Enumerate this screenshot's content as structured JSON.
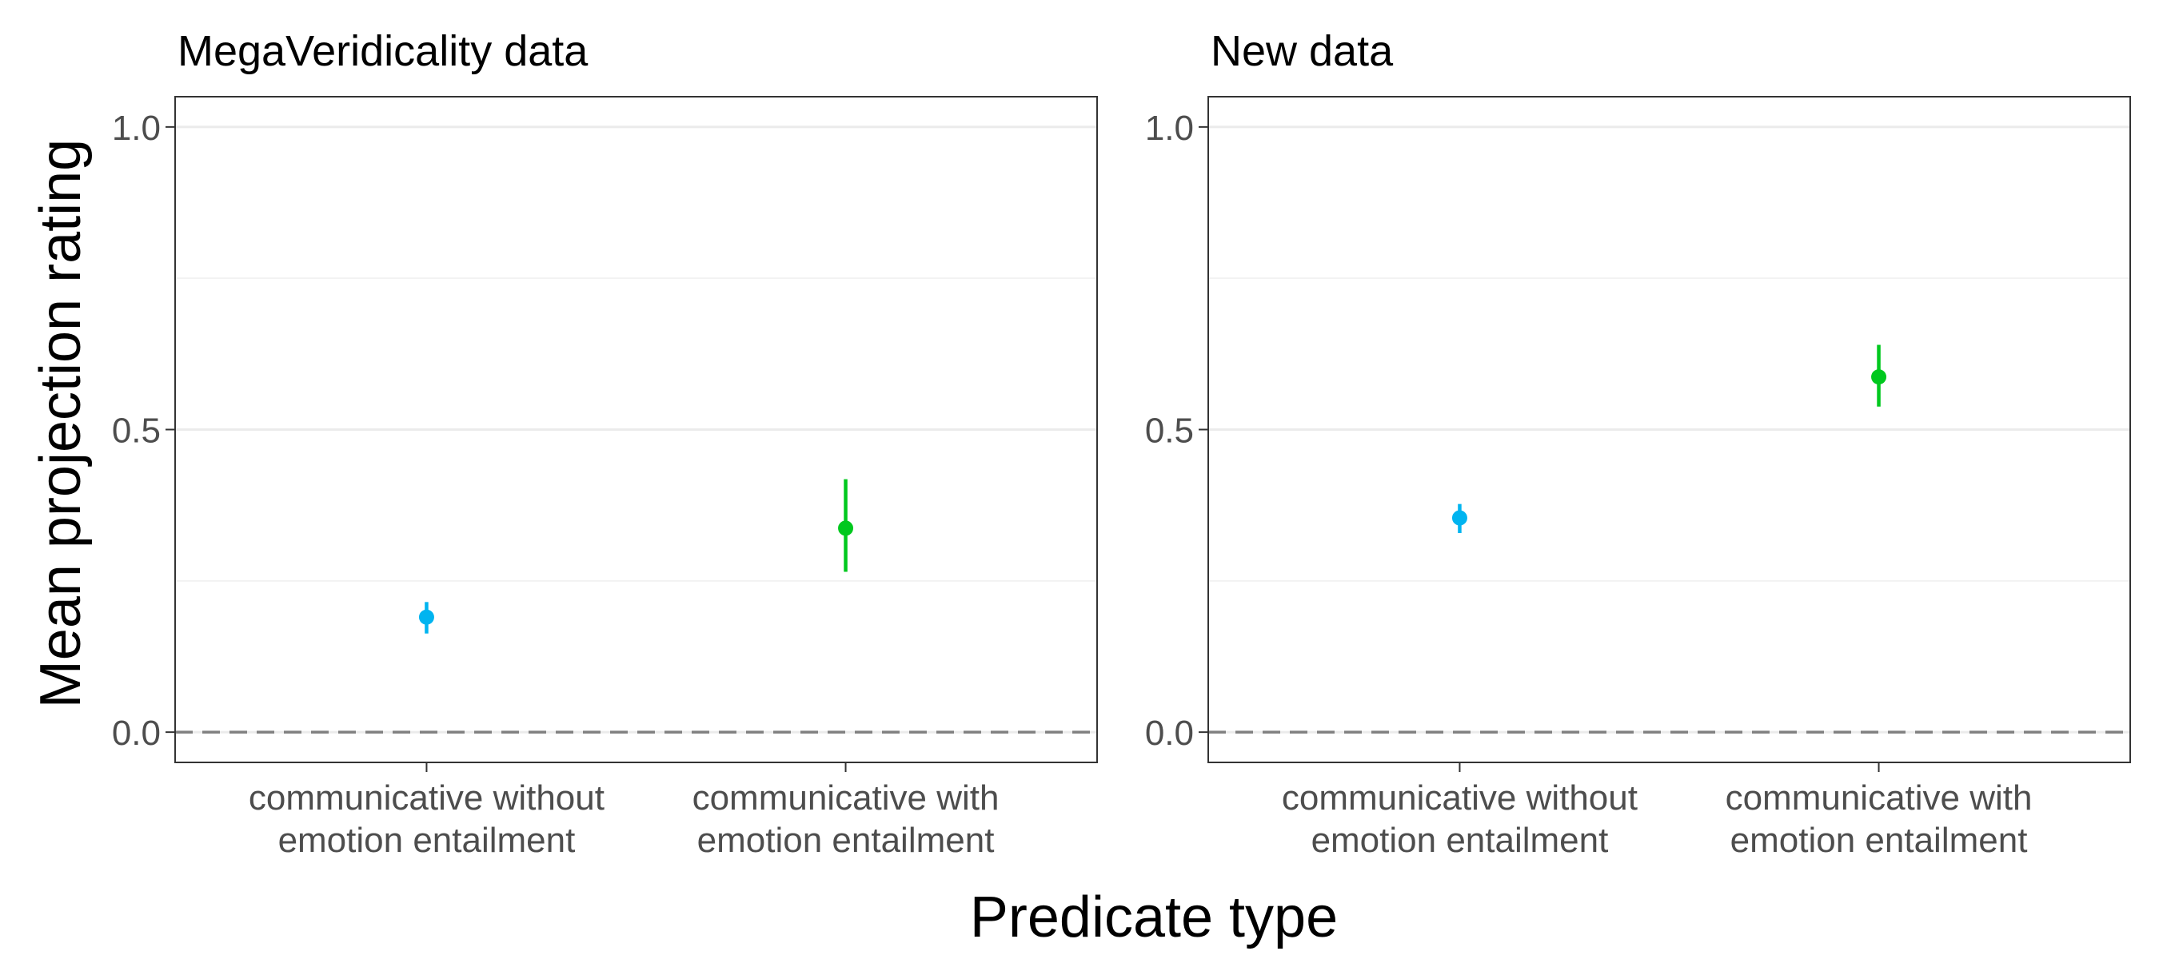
{
  "chart_data": {
    "type": "scatter",
    "ylabel": "Mean projection rating",
    "xlabel": "Predicate type",
    "ylim": [
      -0.05,
      1.05
    ],
    "yticks": [
      0.0,
      0.5,
      1.0
    ],
    "ytick_labels": [
      "0.0",
      "0.5",
      "1.0"
    ],
    "reference_line": 0.0,
    "categories": [
      [
        "communicative without",
        "emotion entailment"
      ],
      [
        "communicative with",
        "emotion entailment"
      ]
    ],
    "colors": [
      "#00b4f0",
      "#00c81e"
    ],
    "grid": true,
    "facets": [
      {
        "title": "MegaVeridicality data",
        "points": [
          {
            "y": 0.19,
            "ymin": 0.163,
            "ymax": 0.215
          },
          {
            "y": 0.337,
            "ymin": 0.265,
            "ymax": 0.418
          }
        ]
      },
      {
        "title": "New data",
        "points": [
          {
            "y": 0.354,
            "ymin": 0.329,
            "ymax": 0.377
          },
          {
            "y": 0.587,
            "ymin": 0.538,
            "ymax": 0.64
          }
        ]
      }
    ]
  }
}
